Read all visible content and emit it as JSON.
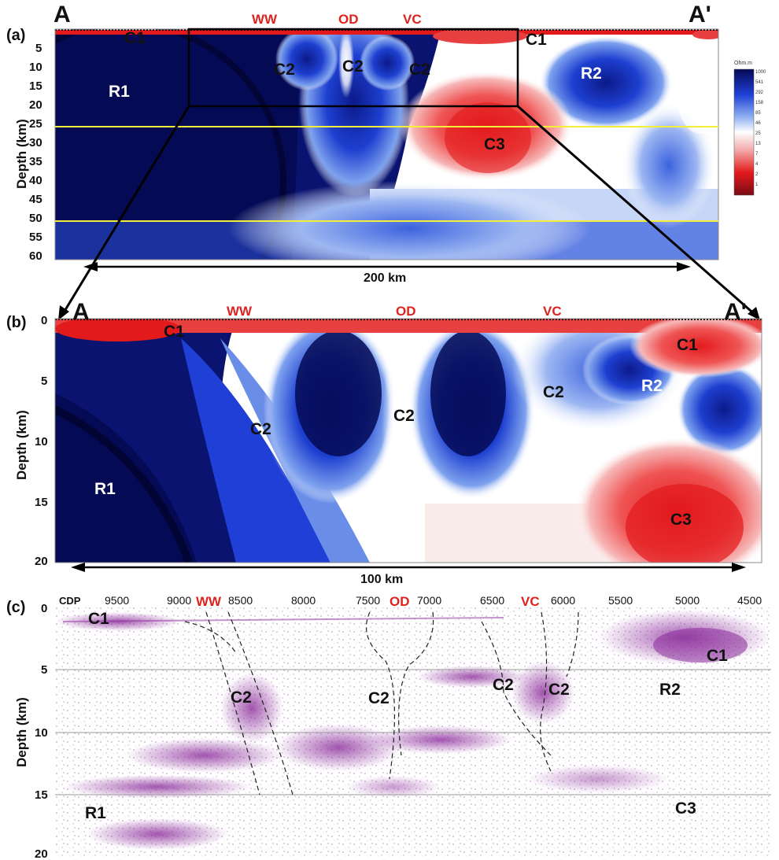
{
  "figure": {
    "panel_a": {
      "tag": "(a)",
      "end_left": "A",
      "end_right": "A'",
      "ylabel": "Depth (km)",
      "yticks": [
        "5",
        "10",
        "15",
        "20",
        "25",
        "30",
        "35",
        "40",
        "45",
        "50",
        "55",
        "60"
      ],
      "sites": [
        "WW",
        "OD",
        "VC"
      ],
      "labels": [
        "C1",
        "C1",
        "C2",
        "C2",
        "C2",
        "R1",
        "R2",
        "C3"
      ],
      "scale": "200 km",
      "colorbar_unit": "Ohm.m",
      "colorbar_ticks": [
        "1000",
        "541",
        "292",
        "158",
        "85",
        "46",
        "25",
        "13",
        "7",
        "4",
        "2",
        "1"
      ]
    },
    "panel_b": {
      "tag": "(b)",
      "end_left": "A",
      "end_right": "A'",
      "ylabel": "Depth (km)",
      "yticks": [
        "0",
        "5",
        "10",
        "15",
        "20"
      ],
      "sites": [
        "WW",
        "OD",
        "VC"
      ],
      "labels": [
        "C1",
        "C1",
        "C2",
        "C2",
        "C2",
        "R1",
        "R2",
        "C3"
      ],
      "scale": "100 km"
    },
    "panel_c": {
      "tag": "(c)",
      "cdp_label": "CDP",
      "cdp_ticks": [
        "9500",
        "9000",
        "8500",
        "8000",
        "7500",
        "7000",
        "6500",
        "6000",
        "5500",
        "5000",
        "4500"
      ],
      "sites": [
        "WW",
        "OD",
        "VC"
      ],
      "ylabel": "Depth (km)",
      "yticks": [
        "0",
        "5",
        "10",
        "15",
        "20"
      ],
      "labels": [
        "C1",
        "C1",
        "C2",
        "C2",
        "C2",
        "C2",
        "R1",
        "R2",
        "C3"
      ]
    }
  },
  "colors": {
    "conductive": "#e31a1c",
    "resistive": "#0a1470",
    "site_text": "#e0221f",
    "seismic": "#8a2b9a",
    "yellow_line": "#f2ee3a"
  }
}
